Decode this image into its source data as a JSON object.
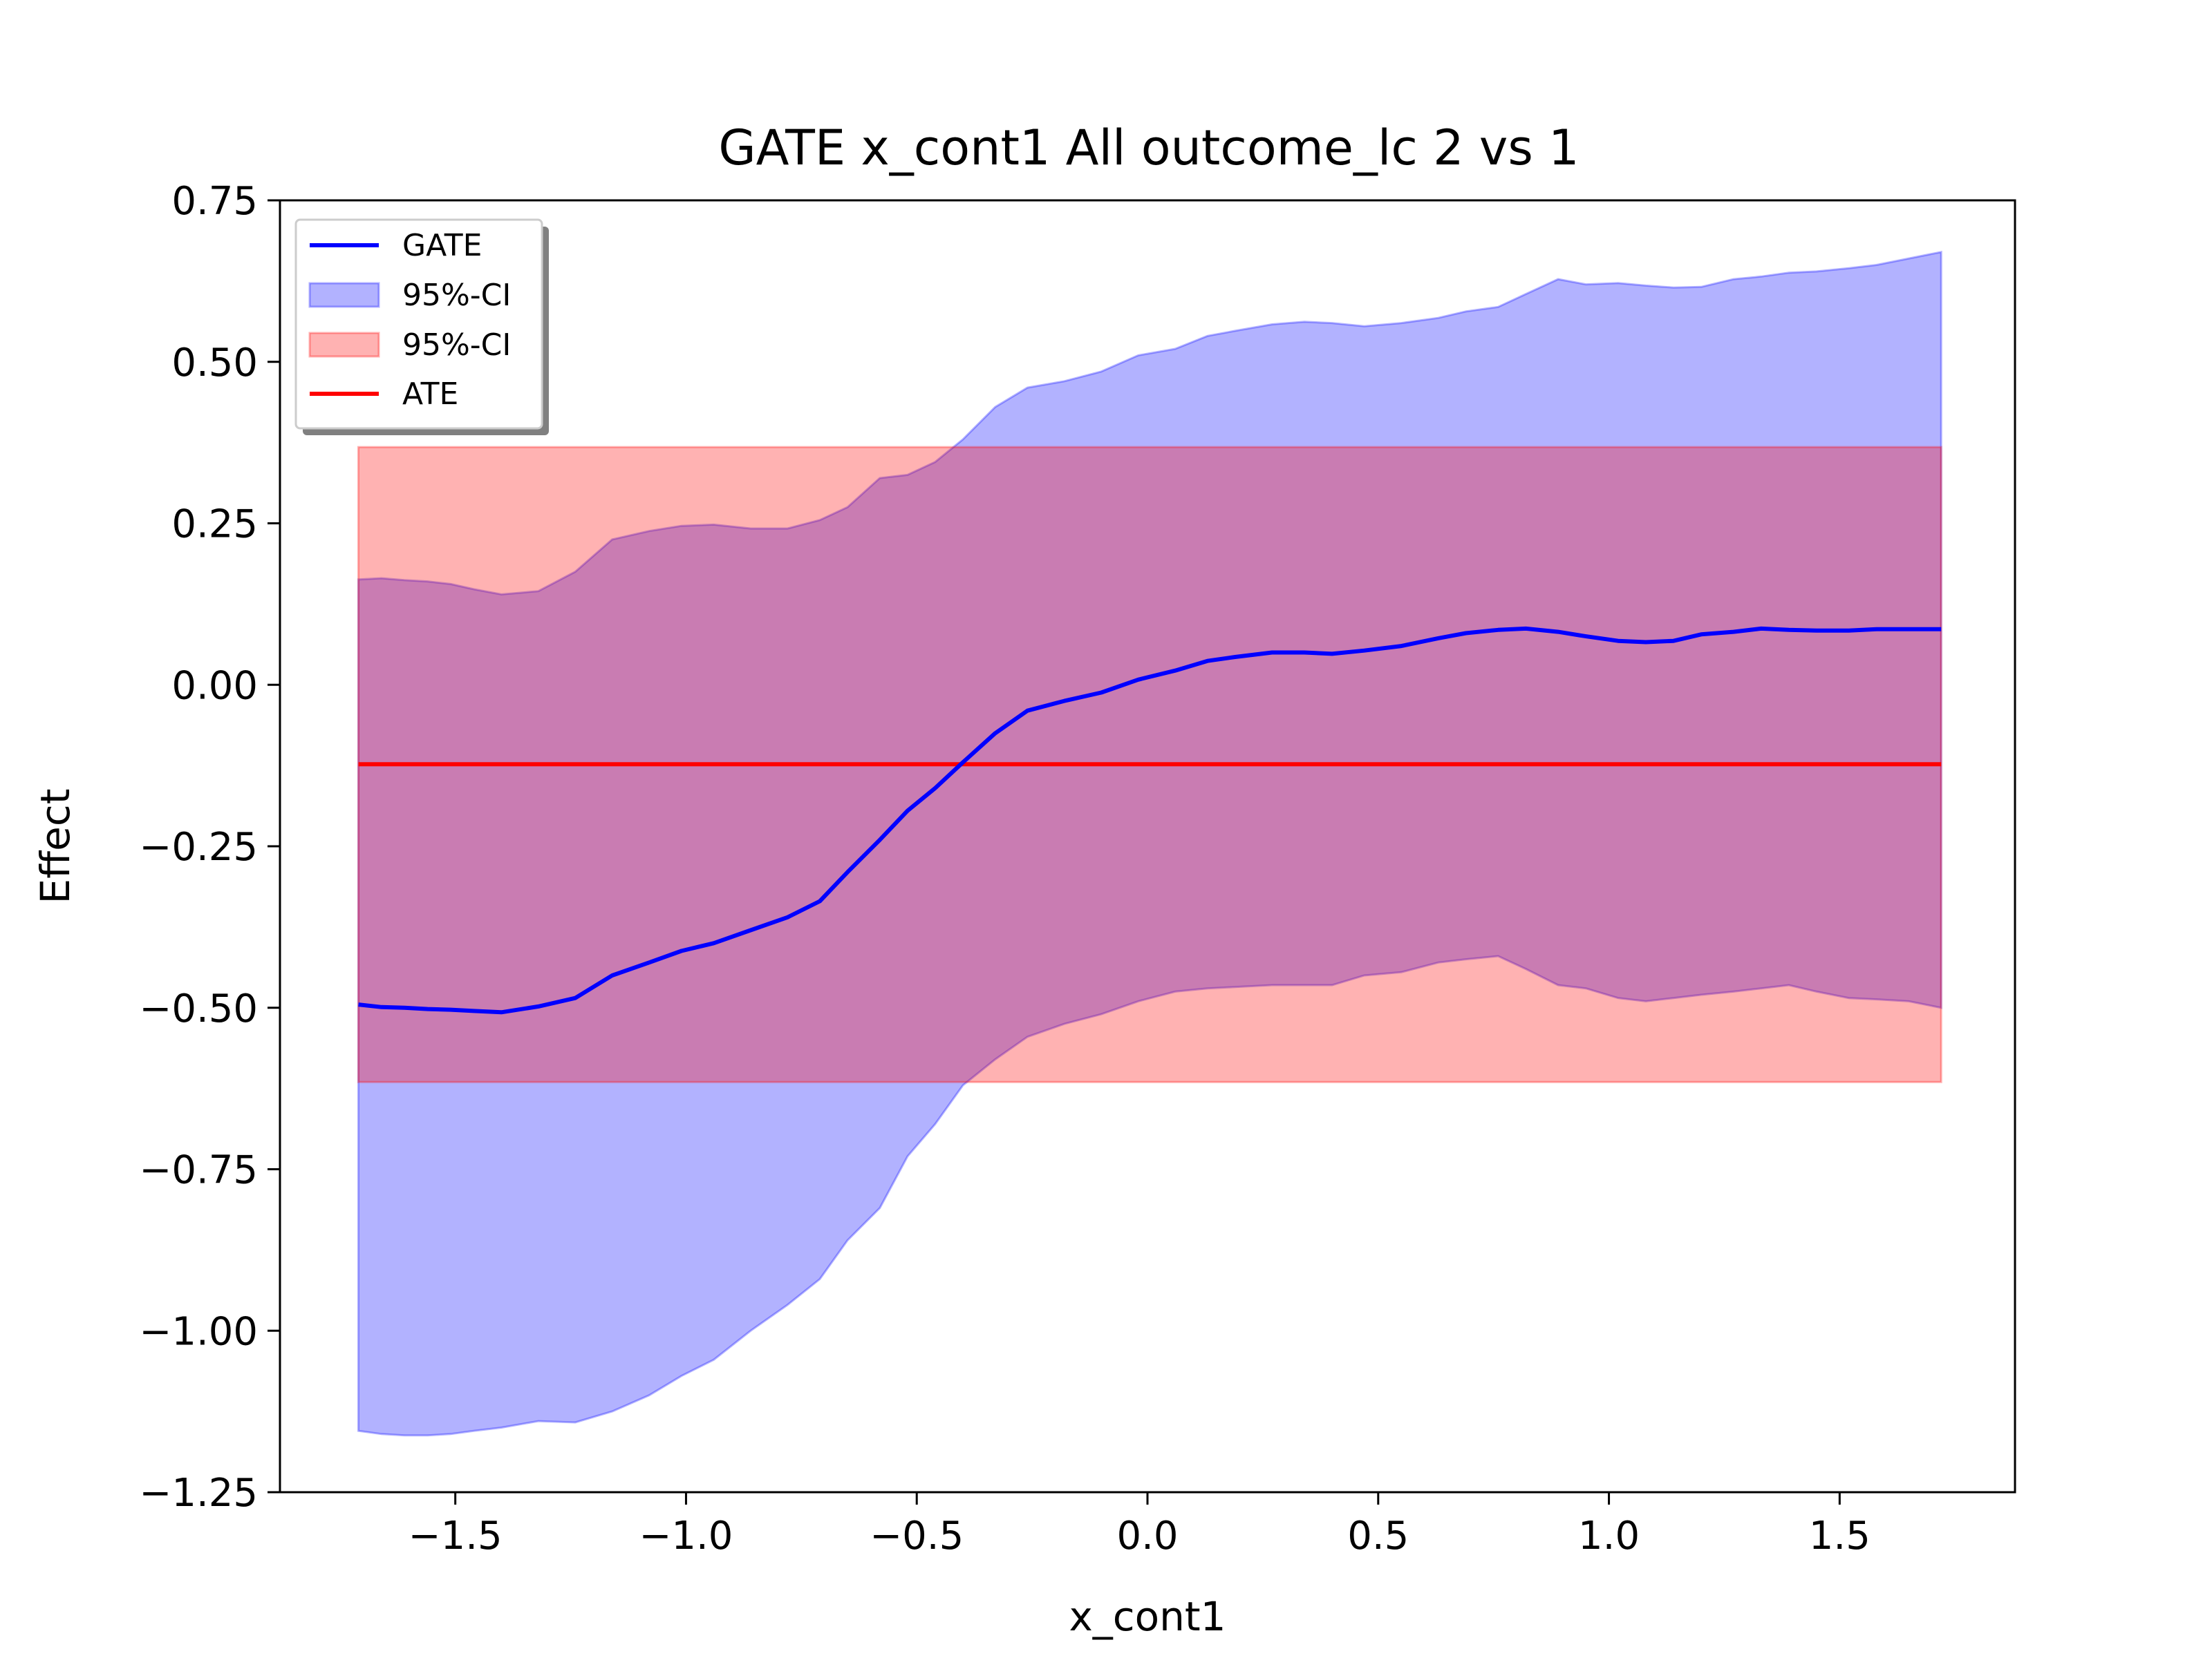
{
  "chart_data": {
    "type": "area",
    "title": "GATE x_cont1 All outcome_lc  2 vs 1",
    "xlabel": "x_cont1",
    "ylabel": "Effect",
    "xlim": [
      -1.88,
      1.88
    ],
    "ylim": [
      -1.25,
      0.75
    ],
    "xticks": [
      -1.5,
      -1.0,
      -0.5,
      0.0,
      0.5,
      1.0,
      1.5
    ],
    "xtick_labels": [
      "−1.5",
      "−1.0",
      "−0.5",
      "0.0",
      "0.5",
      "1.0",
      "1.5"
    ],
    "yticks": [
      0.75,
      0.5,
      0.25,
      0.0,
      -0.25,
      -0.5,
      -0.75,
      -1.0,
      -1.25
    ],
    "ytick_labels": [
      "0.75",
      "0.50",
      "0.25",
      "0.00",
      "−0.25",
      "−0.50",
      "−0.75",
      "−1.00",
      "−1.25"
    ],
    "legend_placement": "upper-left",
    "grid": false,
    "x": [
      -1.71,
      -1.66,
      -1.61,
      -1.56,
      -1.51,
      -1.46,
      -1.4,
      -1.32,
      -1.24,
      -1.16,
      -1.08,
      -1.01,
      -0.94,
      -0.86,
      -0.78,
      -0.71,
      -0.65,
      -0.58,
      -0.52,
      -0.46,
      -0.4,
      -0.33,
      -0.26,
      -0.18,
      -0.1,
      -0.02,
      0.06,
      0.13,
      0.19,
      0.27,
      0.34,
      0.4,
      0.47,
      0.55,
      0.63,
      0.69,
      0.76,
      0.82,
      0.89,
      0.95,
      1.02,
      1.08,
      1.14,
      1.2,
      1.27,
      1.33,
      1.39,
      1.45,
      1.52,
      1.58,
      1.65,
      1.72
    ],
    "series": [
      {
        "name": "GATE",
        "type": "line",
        "color": "#0000ff",
        "values": [
          -0.495,
          -0.499,
          -0.5,
          -0.502,
          -0.503,
          -0.505,
          -0.507,
          -0.498,
          -0.485,
          -0.45,
          -0.43,
          -0.412,
          -0.4,
          -0.38,
          -0.36,
          -0.335,
          -0.29,
          -0.24,
          -0.195,
          -0.16,
          -0.12,
          -0.075,
          -0.04,
          -0.025,
          -0.012,
          0.008,
          0.022,
          0.037,
          0.043,
          0.05,
          0.05,
          0.048,
          0.053,
          0.06,
          0.072,
          0.08,
          0.085,
          0.087,
          0.082,
          0.075,
          0.068,
          0.066,
          0.068,
          0.078,
          0.082,
          0.087,
          0.085,
          0.084,
          0.084,
          0.086,
          0.086,
          0.086
        ]
      },
      {
        "name": "95%-CI",
        "type": "band",
        "color": "#0000ff",
        "alpha": 0.3,
        "upper": [
          0.163,
          0.165,
          0.162,
          0.16,
          0.156,
          0.148,
          0.14,
          0.145,
          0.175,
          0.225,
          0.238,
          0.246,
          0.248,
          0.242,
          0.242,
          0.255,
          0.275,
          0.32,
          0.325,
          0.345,
          0.38,
          0.43,
          0.46,
          0.47,
          0.485,
          0.51,
          0.52,
          0.54,
          0.548,
          0.558,
          0.562,
          0.56,
          0.555,
          0.56,
          0.568,
          0.578,
          0.585,
          0.605,
          0.628,
          0.62,
          0.622,
          0.618,
          0.615,
          0.616,
          0.628,
          0.632,
          0.638,
          0.64,
          0.645,
          0.65,
          0.66,
          0.67
        ],
        "lower": [
          -1.155,
          -1.16,
          -1.162,
          -1.162,
          -1.16,
          -1.155,
          -1.15,
          -1.14,
          -1.142,
          -1.125,
          -1.1,
          -1.07,
          -1.045,
          -1.0,
          -0.96,
          -0.92,
          -0.86,
          -0.81,
          -0.73,
          -0.68,
          -0.62,
          -0.58,
          -0.545,
          -0.525,
          -0.51,
          -0.49,
          -0.475,
          -0.47,
          -0.468,
          -0.465,
          -0.465,
          -0.465,
          -0.45,
          -0.445,
          -0.43,
          -0.425,
          -0.42,
          -0.44,
          -0.465,
          -0.47,
          -0.485,
          -0.49,
          -0.485,
          -0.48,
          -0.475,
          -0.47,
          -0.465,
          -0.475,
          -0.485,
          -0.487,
          -0.49,
          -0.5
        ]
      },
      {
        "name": "95%-CI",
        "type": "band",
        "color": "#ff0000",
        "alpha": 0.3,
        "upper_const": 0.368,
        "lower_const": -0.615
      },
      {
        "name": "ATE",
        "type": "hline",
        "color": "#ff0000",
        "value": -0.123
      }
    ]
  }
}
